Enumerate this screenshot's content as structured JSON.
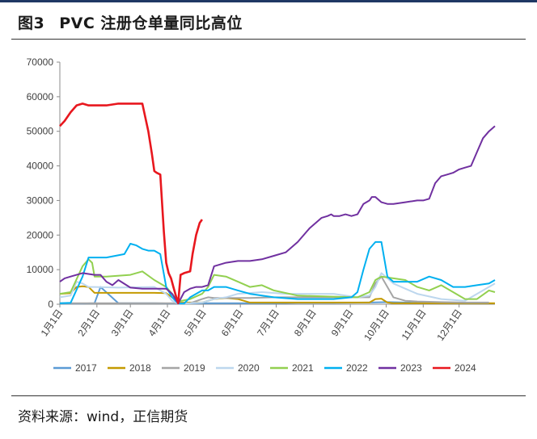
{
  "title": {
    "number": "图3",
    "text": "PVC 注册仓单量同比高位"
  },
  "source": {
    "label": "资料来源：",
    "text": "wind，正信期货"
  },
  "chart_data": {
    "type": "line",
    "ylim": [
      0,
      70000
    ],
    "yticks": [
      "0",
      "10000",
      "20000",
      "30000",
      "40000",
      "50000",
      "60000",
      "70000"
    ],
    "xticks": [
      "1月1日",
      "2月1日",
      "3月1日",
      "4月1日",
      "5月1日",
      "6月1日",
      "7月1日",
      "8月1日",
      "9月1日",
      "10月1日",
      "11月1日",
      "12月1日"
    ],
    "x_unit": "day_of_year",
    "legend_position": "bottom",
    "grid": false,
    "series": [
      {
        "name": "2017",
        "color": "#5b9bd5",
        "x": [
          1,
          20,
          30,
          35,
          50,
          80,
          95,
          100,
          120,
          140,
          160,
          180,
          200,
          230,
          260,
          275,
          290,
          300,
          320,
          340,
          360
        ],
        "y": [
          200,
          200,
          300,
          5000,
          300,
          300,
          200,
          200,
          300,
          300,
          300,
          300,
          400,
          400,
          500,
          600,
          500,
          400,
          400,
          300,
          300
        ]
      },
      {
        "name": "2018",
        "color": "#c49a00",
        "x": [
          1,
          10,
          15,
          20,
          25,
          30,
          40,
          60,
          80,
          90,
          95,
          100,
          110,
          120,
          130,
          140,
          150,
          160,
          180,
          200,
          220,
          240,
          260,
          265,
          270,
          275,
          280,
          300,
          330,
          365
        ],
        "y": [
          3000,
          3200,
          5000,
          5200,
          5000,
          3300,
          3300,
          3300,
          3300,
          3200,
          2000,
          500,
          500,
          500,
          1500,
          1800,
          1500,
          500,
          500,
          500,
          500,
          500,
          500,
          1500,
          1600,
          500,
          300,
          300,
          300,
          300
        ]
      },
      {
        "name": "2019",
        "color": "#a5a5a5",
        "x": [
          1,
          10,
          20,
          30,
          40,
          60,
          80,
          90,
          95,
          100,
          110,
          120,
          125,
          130,
          140,
          150,
          160,
          180,
          200,
          230,
          250,
          260,
          265,
          270,
          280,
          290,
          300,
          320,
          340,
          360
        ],
        "y": [
          300,
          300,
          300,
          300,
          300,
          300,
          300,
          300,
          300,
          300,
          300,
          1500,
          2000,
          1800,
          1800,
          1800,
          1800,
          2000,
          2000,
          2000,
          2000,
          2000,
          6000,
          8000,
          2000,
          1000,
          800,
          600,
          500,
          500
        ]
      },
      {
        "name": "2020",
        "color": "#bdd7ee",
        "x": [
          1,
          10,
          15,
          20,
          25,
          30,
          50,
          80,
          90,
          95,
          100,
          110,
          120,
          130,
          140,
          150,
          170,
          190,
          210,
          230,
          250,
          260,
          265,
          270,
          280,
          300,
          320,
          340,
          355,
          365
        ],
        "y": [
          2000,
          2500,
          6500,
          6000,
          5000,
          5000,
          4800,
          5000,
          3000,
          1000,
          200,
          300,
          500,
          1500,
          2000,
          3000,
          3500,
          3000,
          3000,
          3000,
          2000,
          2500,
          5000,
          9000,
          6000,
          3000,
          1500,
          1000,
          4000,
          6000
        ]
      },
      {
        "name": "2021",
        "color": "#92d050",
        "x": [
          1,
          10,
          20,
          25,
          28,
          30,
          40,
          60,
          70,
          80,
          90,
          95,
          100,
          110,
          120,
          125,
          130,
          140,
          150,
          160,
          170,
          180,
          200,
          230,
          250,
          260,
          265,
          270,
          280,
          290,
          300,
          310,
          320,
          330,
          340,
          350,
          360,
          365
        ],
        "y": [
          3000,
          3500,
          11000,
          13000,
          12000,
          8000,
          8000,
          8500,
          9500,
          7000,
          5000,
          3000,
          800,
          1500,
          3000,
          5000,
          8500,
          8000,
          6500,
          5000,
          5500,
          4000,
          2500,
          2200,
          2000,
          3500,
          7000,
          8000,
          7500,
          7000,
          5000,
          4000,
          5500,
          3500,
          1500,
          1500,
          4000,
          3500
        ]
      },
      {
        "name": "2022",
        "color": "#00b0f0",
        "x": [
          1,
          10,
          20,
          25,
          30,
          40,
          55,
          60,
          65,
          70,
          75,
          80,
          85,
          90,
          95,
          100,
          105,
          110,
          120,
          125,
          130,
          140,
          150,
          160,
          170,
          180,
          200,
          230,
          245,
          250,
          255,
          260,
          265,
          270,
          275,
          280,
          285,
          290,
          300,
          310,
          320,
          330,
          340,
          350,
          360,
          365
        ],
        "y": [
          300,
          400,
          8000,
          13500,
          13500,
          13500,
          14500,
          17500,
          17000,
          16000,
          15500,
          15500,
          14500,
          5000,
          2000,
          200,
          200,
          2000,
          4000,
          4000,
          5000,
          5000,
          4000,
          3000,
          2500,
          2000,
          1500,
          1500,
          2000,
          3500,
          10000,
          16000,
          18000,
          18000,
          8000,
          6500,
          6500,
          6500,
          6500,
          8000,
          7000,
          5000,
          5000,
          5500,
          6000,
          7000
        ]
      },
      {
        "name": "2023",
        "color": "#7030a0",
        "x": [
          1,
          5,
          10,
          20,
          30,
          35,
          40,
          45,
          50,
          60,
          70,
          80,
          90,
          95,
          100,
          105,
          110,
          115,
          120,
          125,
          130,
          140,
          150,
          160,
          170,
          180,
          190,
          200,
          210,
          220,
          225,
          228,
          230,
          235,
          240,
          245,
          250,
          255,
          260,
          262,
          265,
          270,
          275,
          280,
          290,
          300,
          305,
          310,
          315,
          320,
          325,
          330,
          335,
          340,
          345,
          350,
          355,
          360,
          365
        ],
        "y": [
          6500,
          7500,
          8000,
          9000,
          8500,
          8500,
          6500,
          5500,
          7000,
          4800,
          4500,
          4500,
          4500,
          3000,
          200,
          3500,
          4500,
          5000,
          5000,
          5500,
          11000,
          12000,
          12500,
          12500,
          13000,
          14000,
          15000,
          18000,
          22000,
          25000,
          25500,
          26000,
          25500,
          25500,
          26000,
          25500,
          26000,
          29000,
          30000,
          31000,
          31000,
          29500,
          29000,
          29000,
          29500,
          30000,
          30000,
          30500,
          35000,
          37000,
          37500,
          38000,
          39000,
          39500,
          40000,
          44000,
          48000,
          50000,
          51500
        ]
      },
      {
        "name": "2024",
        "color": "#e8171e",
        "x": [
          1,
          5,
          10,
          15,
          20,
          25,
          30,
          40,
          50,
          60,
          70,
          75,
          78,
          80,
          82,
          85,
          88,
          90,
          92,
          94,
          96,
          98,
          100,
          102,
          105,
          110,
          112,
          115,
          118,
          120
        ],
        "y": [
          51500,
          53000,
          55500,
          57500,
          58000,
          57500,
          57500,
          57500,
          58000,
          58000,
          58000,
          50000,
          43500,
          38500,
          38000,
          37500,
          21000,
          12000,
          9000,
          7500,
          5000,
          2500,
          300,
          8500,
          9000,
          9500,
          14500,
          20000,
          23500,
          24500
        ]
      }
    ]
  }
}
